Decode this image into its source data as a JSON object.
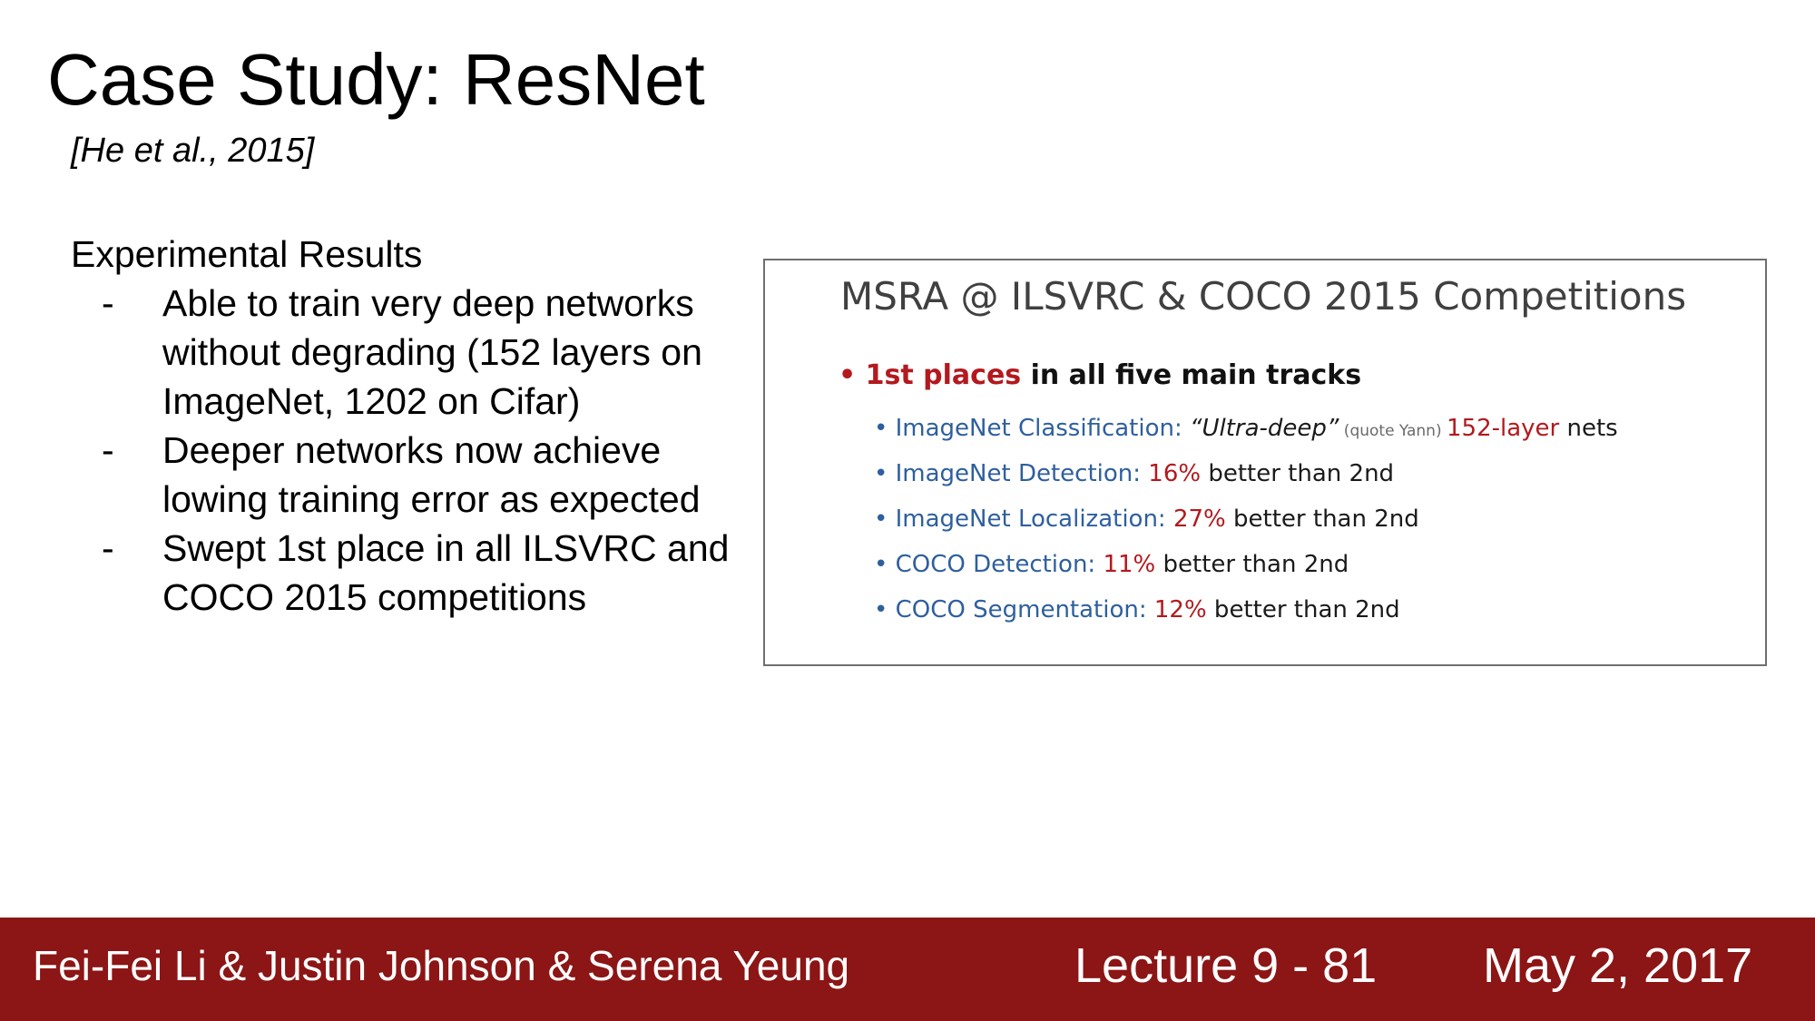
{
  "slide": {
    "title": "Case Study: ResNet",
    "citation": "[He et al., 2015]",
    "results_heading": "Experimental Results",
    "bullets": [
      {
        "marker": "-",
        "text": "Able to train very deep networks without degrading (152 layers on ImageNet, 1202 on Cifar)"
      },
      {
        "marker": "-",
        "text": "Deeper networks now achieve lowing training error as expected"
      },
      {
        "marker": "-",
        "text": "Swept 1st place in all ILSVRC and COCO 2015 competitions"
      }
    ]
  },
  "panel": {
    "title": "MSRA @ ILSVRC & COCO 2015 Competitions",
    "main_bullet": {
      "marker": "•",
      "highlight": "1st places",
      "rest": " in all five main tracks"
    },
    "items": [
      {
        "marker": "•",
        "label": "ImageNet Classification: ",
        "quote": "“Ultra-deep”",
        "note": " (quote Yann) ",
        "highlight": "152-layer",
        "rest": " nets"
      },
      {
        "marker": "•",
        "label": "ImageNet Detection: ",
        "highlight": "16%",
        "rest": " better than 2nd"
      },
      {
        "marker": "•",
        "label": "ImageNet Localization: ",
        "highlight": "27%",
        "rest": " better than 2nd"
      },
      {
        "marker": "•",
        "label": "COCO Detection: ",
        "highlight": "11%",
        "rest": " better than 2nd"
      },
      {
        "marker": "•",
        "label": "COCO Segmentation: ",
        "highlight": "12%",
        "rest": " better than 2nd"
      }
    ]
  },
  "footer": {
    "authors": "Fei-Fei Li & Justin Johnson & Serena Yeung",
    "lecture": "Lecture 9 - 81",
    "date": "May 2, 2017"
  },
  "colors": {
    "footer_bg": "#8c1515",
    "highlight_red": "#b3191e",
    "label_blue": "#2e5f9e"
  }
}
